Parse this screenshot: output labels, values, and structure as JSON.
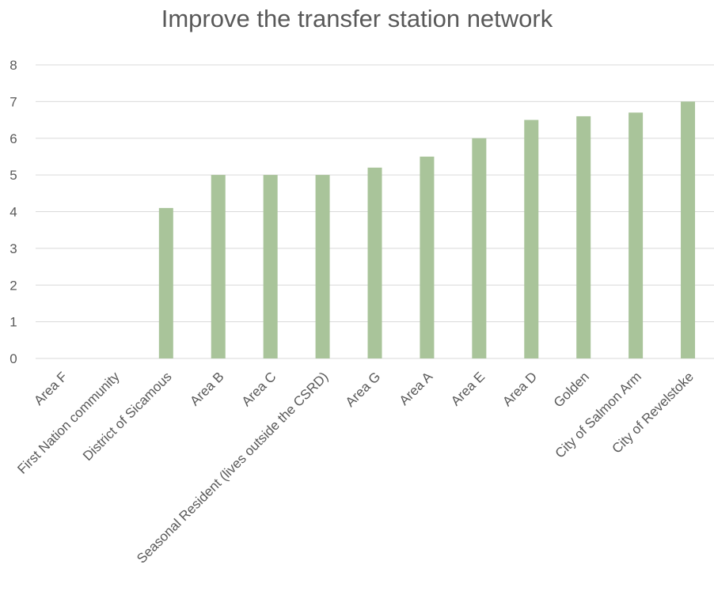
{
  "chart_data": {
    "type": "bar",
    "title": "Improve the transfer station network",
    "categories": [
      "Area F",
      "First Nation community",
      "District of Sicamous",
      "Area B",
      "Area C",
      "Seasonal Resident (lives outside the CSRD)",
      "Area G",
      "Area A",
      "Area E",
      "Area D",
      "Golden",
      "City of Salmon Arm",
      "City of Revelstoke"
    ],
    "values": [
      0,
      0,
      4.1,
      5.0,
      5.0,
      5.0,
      5.2,
      5.5,
      6.0,
      6.5,
      6.6,
      6.7,
      7.0
    ],
    "yticks": [
      "0",
      "1",
      "2",
      "3",
      "4",
      "5",
      "6",
      "7",
      "8"
    ],
    "ylim": [
      0,
      8
    ],
    "xlabel": "",
    "ylabel": "",
    "grid": true,
    "legend": "none",
    "bar_color": "#a9c49a",
    "grid_color": "#d9d9d9",
    "text_color": "#595959"
  }
}
